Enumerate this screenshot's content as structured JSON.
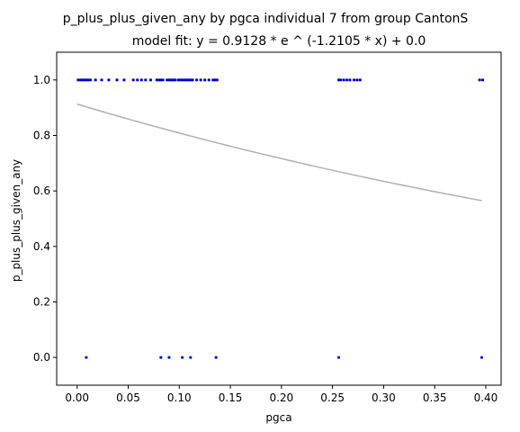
{
  "chart_data": {
    "type": "scatter",
    "title": "p_plus_plus_given_any by pgca individual 7 from group CantonS",
    "subtitle": "model fit: y = 0.9128 * e ^ (-1.2105 * x) + 0.0",
    "xlabel": "pgca",
    "ylabel": "p_plus_plus_given_any",
    "xlim": [
      -0.02,
      0.415
    ],
    "ylim": [
      -0.1,
      1.1
    ],
    "x_ticks": [
      0.0,
      0.05,
      0.1,
      0.15,
      0.2,
      0.25,
      0.3,
      0.35,
      0.4
    ],
    "x_tick_labels": [
      "0.00",
      "0.05",
      "0.10",
      "0.15",
      "0.20",
      "0.25",
      "0.30",
      "0.35",
      "0.40"
    ],
    "y_ticks": [
      0.0,
      0.2,
      0.4,
      0.6,
      0.8,
      1.0
    ],
    "y_tick_labels": [
      "0.0",
      "0.2",
      "0.4",
      "0.6",
      "0.8",
      "1.0"
    ],
    "grid": false,
    "colors": {
      "points": "#0000cc",
      "fit_line": "#b0b0b0",
      "axes": "#000000"
    },
    "fit": {
      "a": 0.9128,
      "b": -1.2105,
      "c": 0.0,
      "x_range": [
        0.0,
        0.396
      ]
    },
    "points": [
      {
        "x": 0.001,
        "y": 1
      },
      {
        "x": 0.003,
        "y": 1
      },
      {
        "x": 0.005,
        "y": 1
      },
      {
        "x": 0.007,
        "y": 1
      },
      {
        "x": 0.009,
        "y": 1
      },
      {
        "x": 0.011,
        "y": 1
      },
      {
        "x": 0.013,
        "y": 1
      },
      {
        "x": 0.018,
        "y": 1
      },
      {
        "x": 0.024,
        "y": 1
      },
      {
        "x": 0.031,
        "y": 1
      },
      {
        "x": 0.039,
        "y": 1
      },
      {
        "x": 0.046,
        "y": 1
      },
      {
        "x": 0.055,
        "y": 1
      },
      {
        "x": 0.059,
        "y": 1
      },
      {
        "x": 0.063,
        "y": 1
      },
      {
        "x": 0.067,
        "y": 1
      },
      {
        "x": 0.072,
        "y": 1
      },
      {
        "x": 0.078,
        "y": 1
      },
      {
        "x": 0.08,
        "y": 1
      },
      {
        "x": 0.082,
        "y": 1
      },
      {
        "x": 0.084,
        "y": 1
      },
      {
        "x": 0.088,
        "y": 1
      },
      {
        "x": 0.09,
        "y": 1
      },
      {
        "x": 0.092,
        "y": 1
      },
      {
        "x": 0.094,
        "y": 1
      },
      {
        "x": 0.096,
        "y": 1
      },
      {
        "x": 0.099,
        "y": 1
      },
      {
        "x": 0.101,
        "y": 1
      },
      {
        "x": 0.103,
        "y": 1
      },
      {
        "x": 0.105,
        "y": 1
      },
      {
        "x": 0.107,
        "y": 1
      },
      {
        "x": 0.109,
        "y": 1
      },
      {
        "x": 0.111,
        "y": 1
      },
      {
        "x": 0.113,
        "y": 1
      },
      {
        "x": 0.117,
        "y": 1
      },
      {
        "x": 0.121,
        "y": 1
      },
      {
        "x": 0.125,
        "y": 1
      },
      {
        "x": 0.129,
        "y": 1
      },
      {
        "x": 0.133,
        "y": 1
      },
      {
        "x": 0.135,
        "y": 1
      },
      {
        "x": 0.137,
        "y": 1
      },
      {
        "x": 0.256,
        "y": 1
      },
      {
        "x": 0.258,
        "y": 1
      },
      {
        "x": 0.261,
        "y": 1
      },
      {
        "x": 0.264,
        "y": 1
      },
      {
        "x": 0.267,
        "y": 1
      },
      {
        "x": 0.271,
        "y": 1
      },
      {
        "x": 0.274,
        "y": 1
      },
      {
        "x": 0.277,
        "y": 1
      },
      {
        "x": 0.394,
        "y": 1
      },
      {
        "x": 0.397,
        "y": 1
      },
      {
        "x": 0.009,
        "y": 0
      },
      {
        "x": 0.082,
        "y": 0
      },
      {
        "x": 0.09,
        "y": 0
      },
      {
        "x": 0.103,
        "y": 0
      },
      {
        "x": 0.111,
        "y": 0
      },
      {
        "x": 0.136,
        "y": 0
      },
      {
        "x": 0.256,
        "y": 0
      },
      {
        "x": 0.396,
        "y": 0
      }
    ]
  }
}
